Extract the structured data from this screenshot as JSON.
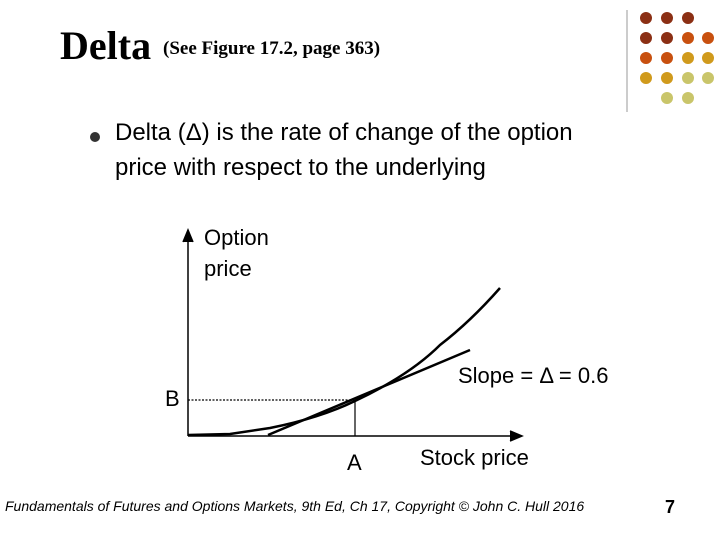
{
  "header": {
    "title": "Delta",
    "subtitle": "(See Figure 17.2, page 363)"
  },
  "bullet": {
    "lines": [
      "Delta (Δ) is the rate of change of the option",
      "price with respect to the underlying"
    ]
  },
  "diagram": {
    "y_axis_label": [
      "Option",
      "price"
    ],
    "x_axis_label": "Stock price",
    "point_b": "B",
    "point_a": "A",
    "slope_label": "Slope = Δ = 0.6"
  },
  "footer": {
    "text": "Fundamentals of Futures and Options Markets, 9th Ed, Ch 17, Copyright © John C. Hull 2016",
    "page_number": 7
  }
}
